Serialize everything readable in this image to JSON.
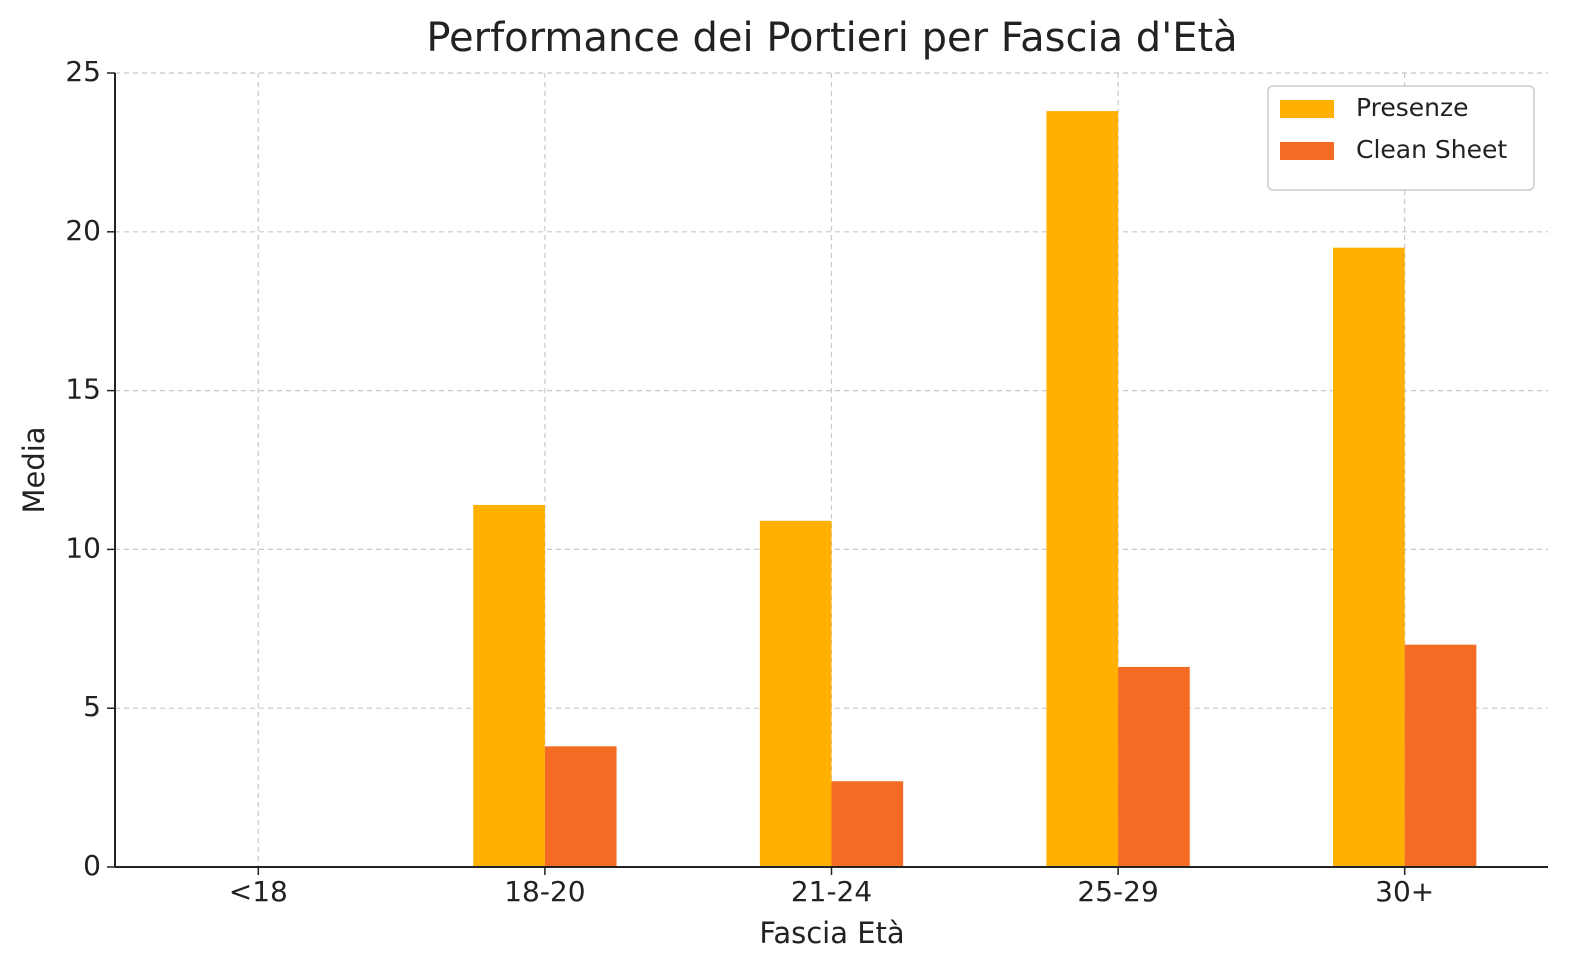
{
  "chart_data": {
    "type": "bar",
    "title": "Performance dei Portieri per Fascia d'Età",
    "x_label": "Fascia Età",
    "y_label": "Media",
    "categories": [
      "<18",
      "18-20",
      "21-24",
      "25-29",
      "30+"
    ],
    "series": [
      {
        "name": "Presenze",
        "color": "#FFB000",
        "values": [
          null,
          11.4,
          10.9,
          23.8,
          19.5
        ]
      },
      {
        "name": "Clean Sheet",
        "color": "#F46B23",
        "values": [
          null,
          3.8,
          2.7,
          6.3,
          7.0
        ]
      }
    ],
    "ylim": [
      0,
      25
    ],
    "yticks": [
      0,
      5,
      10,
      15,
      20,
      25
    ],
    "grid": true,
    "legend": "upper right"
  }
}
